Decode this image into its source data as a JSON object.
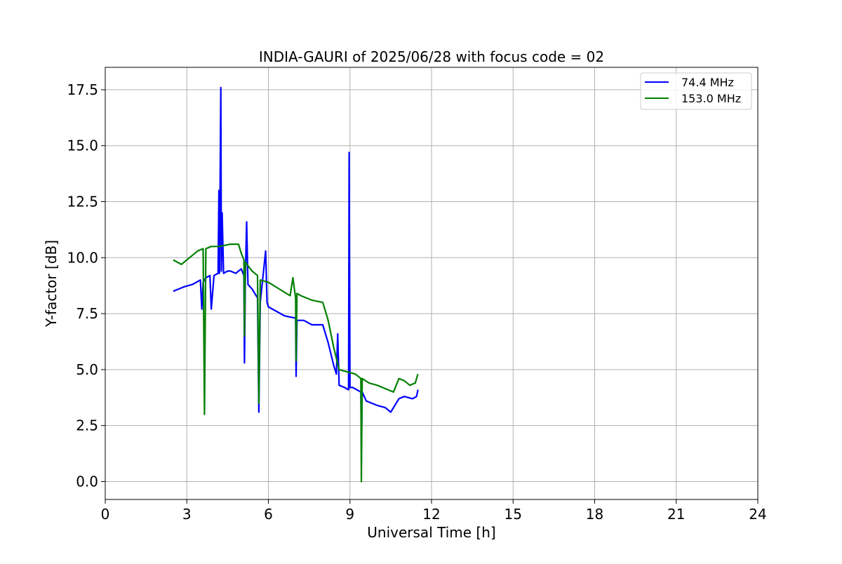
{
  "chart_data": {
    "type": "line",
    "title": "INDIA-GAURI of 2025/06/28 with focus code = 02",
    "xlabel": "Universal Time [h]",
    "ylabel": "Y-factor [dB]",
    "xlim": [
      0,
      24
    ],
    "ylim": [
      -0.8,
      18.5
    ],
    "xticks": [
      0,
      3,
      6,
      9,
      12,
      15,
      18,
      21,
      24
    ],
    "xtick_labels": [
      "0",
      "3",
      "6",
      "9",
      "12",
      "15",
      "18",
      "21",
      "24"
    ],
    "yticks": [
      0.0,
      2.5,
      5.0,
      7.5,
      10.0,
      12.5,
      15.0,
      17.5
    ],
    "ytick_labels": [
      "0.0",
      "2.5",
      "5.0",
      "7.5",
      "10.0",
      "12.5",
      "15.0",
      "17.5"
    ],
    "grid": true,
    "legend_position": "top-right",
    "series": [
      {
        "name": " 74.4 MHz",
        "color": "#0000ff",
        "x": [
          2.5,
          2.9,
          3.2,
          3.5,
          3.55,
          3.6,
          3.7,
          3.85,
          3.9,
          4.0,
          4.15,
          4.18,
          4.2,
          4.25,
          4.27,
          4.3,
          4.35,
          4.5,
          4.6,
          4.8,
          5.0,
          5.1,
          5.12,
          5.15,
          5.2,
          5.25,
          5.4,
          5.6,
          5.65,
          5.7,
          5.9,
          5.95,
          6.0,
          6.3,
          6.6,
          7.0,
          7.02,
          7.05,
          7.3,
          7.6,
          8.0,
          8.2,
          8.4,
          8.5,
          8.55,
          8.6,
          8.8,
          8.95,
          8.97,
          9.0,
          9.1,
          9.4,
          9.42,
          9.45,
          9.6,
          10.0,
          10.3,
          10.5,
          10.8,
          11.0,
          11.3,
          11.45,
          11.5
        ],
        "y": [
          8.5,
          8.7,
          8.8,
          9.0,
          7.7,
          8.9,
          9.1,
          9.2,
          7.7,
          9.2,
          9.3,
          13.0,
          9.3,
          17.6,
          9.4,
          12.0,
          9.3,
          9.4,
          9.4,
          9.3,
          9.5,
          9.2,
          5.3,
          9.0,
          11.6,
          8.8,
          8.6,
          8.2,
          3.1,
          8.0,
          10.3,
          8.0,
          7.8,
          7.6,
          7.4,
          7.3,
          4.7,
          7.2,
          7.2,
          7.0,
          7.0,
          6.2,
          5.2,
          4.8,
          6.6,
          4.3,
          4.2,
          4.1,
          14.7,
          4.2,
          4.2,
          4.0,
          1.5,
          4.0,
          3.6,
          3.4,
          3.3,
          3.1,
          3.7,
          3.8,
          3.7,
          3.8,
          4.1
        ]
      },
      {
        "name": "153.0 MHz",
        "color": "#008000",
        "x": [
          2.5,
          2.8,
          3.1,
          3.4,
          3.6,
          3.65,
          3.7,
          3.9,
          4.2,
          4.6,
          4.9,
          5.0,
          5.1,
          5.12,
          5.15,
          5.4,
          5.6,
          5.65,
          5.7,
          6.0,
          6.4,
          6.8,
          6.9,
          7.0,
          7.02,
          7.05,
          7.2,
          7.6,
          8.0,
          8.2,
          8.4,
          8.6,
          8.9,
          9.2,
          9.4,
          9.42,
          9.45,
          9.7,
          10.0,
          10.4,
          10.6,
          10.8,
          11.0,
          11.2,
          11.4,
          11.5
        ],
        "y": [
          9.9,
          9.7,
          10.0,
          10.3,
          10.4,
          3.0,
          10.4,
          10.5,
          10.5,
          10.6,
          10.6,
          10.2,
          9.9,
          6.5,
          9.8,
          9.4,
          9.2,
          3.5,
          9.0,
          8.9,
          8.6,
          8.3,
          9.1,
          8.2,
          5.4,
          8.4,
          8.3,
          8.1,
          8.0,
          7.2,
          6.0,
          5.0,
          4.9,
          4.8,
          4.6,
          0.0,
          4.6,
          4.4,
          4.3,
          4.1,
          4.0,
          4.6,
          4.5,
          4.3,
          4.4,
          4.8
        ]
      }
    ]
  }
}
